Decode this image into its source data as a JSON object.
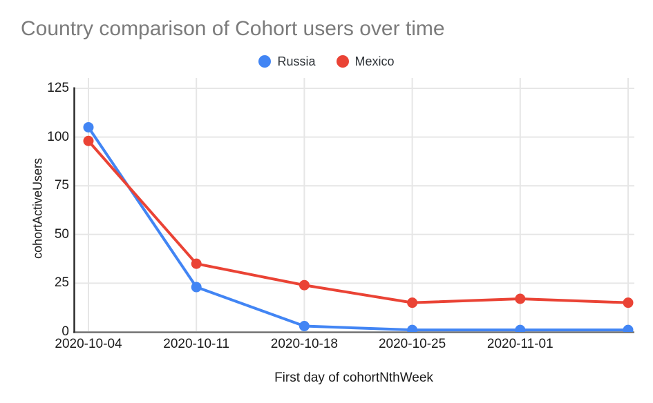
{
  "chart_data": {
    "type": "line",
    "title": "Country comparison of Cohort users over time",
    "xlabel": "First day of cohortNthWeek",
    "ylabel": "cohortActiveUsers",
    "categories": [
      "2020-10-04",
      "2020-10-11",
      "2020-10-18",
      "2020-10-25",
      "2020-11-01",
      ""
    ],
    "series": [
      {
        "name": "Russia",
        "color": "#4285F4",
        "values": [
          105,
          23,
          3,
          1,
          1,
          1
        ]
      },
      {
        "name": "Mexico",
        "color": "#EA4335",
        "values": [
          98,
          35,
          24,
          15,
          17,
          15
        ]
      }
    ],
    "y_ticks": [
      0,
      25,
      50,
      75,
      100,
      125
    ],
    "ylim": [
      0,
      125
    ],
    "grid": true,
    "legend_position": "top",
    "marker": "circle",
    "colors": {
      "title_text": "#7b7b7b",
      "tick_text": "#1b1b1b",
      "legend_text": "#2e3338",
      "gridline": "#e6e6e6",
      "y_axis_line": "#2b2b2b",
      "baseline": "#696969",
      "background": "#ffffff"
    }
  }
}
